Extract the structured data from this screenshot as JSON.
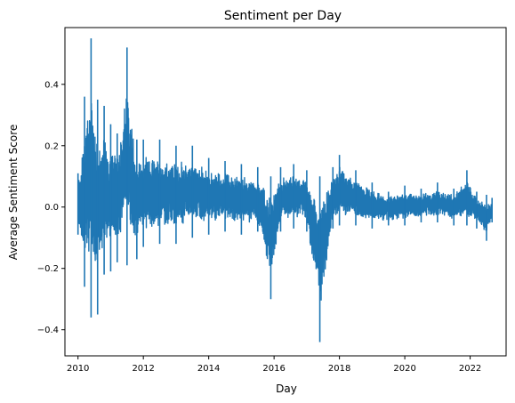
{
  "chart_data": {
    "type": "line",
    "title": "Sentiment per Day",
    "xlabel": "Day",
    "ylabel": "Average Sentiment Score",
    "xlim": [
      2009.6,
      2023.1
    ],
    "ylim": [
      -0.485,
      0.585
    ],
    "x_ticks": [
      2010,
      2012,
      2014,
      2016,
      2018,
      2020,
      2022
    ],
    "x_tick_labels": [
      "2010",
      "2012",
      "2014",
      "2016",
      "2018",
      "2020",
      "2022"
    ],
    "y_ticks": [
      -0.4,
      -0.2,
      0.0,
      0.2,
      0.4
    ],
    "y_tick_labels": [
      "−0.4",
      "−0.2",
      "0.0",
      "0.2",
      "0.4"
    ],
    "grid": false,
    "x_range_of_data": [
      2010.0,
      2022.67
    ],
    "series": [
      {
        "color": "#1f77b4",
        "envelope": [
          {
            "x": 2010.0,
            "min": -0.09,
            "max": 0.11
          },
          {
            "x": 2010.2,
            "min": -0.26,
            "max": 0.36
          },
          {
            "x": 2010.4,
            "min": -0.36,
            "max": 0.55
          },
          {
            "x": 2010.6,
            "min": -0.35,
            "max": 0.35
          },
          {
            "x": 2010.8,
            "min": -0.22,
            "max": 0.33
          },
          {
            "x": 2011.0,
            "min": -0.21,
            "max": 0.27
          },
          {
            "x": 2011.2,
            "min": -0.18,
            "max": 0.24
          },
          {
            "x": 2011.5,
            "min": -0.19,
            "max": 0.52
          },
          {
            "x": 2011.8,
            "min": -0.17,
            "max": 0.22
          },
          {
            "x": 2012.0,
            "min": -0.13,
            "max": 0.22
          },
          {
            "x": 2012.5,
            "min": -0.12,
            "max": 0.22
          },
          {
            "x": 2013.0,
            "min": -0.12,
            "max": 0.2
          },
          {
            "x": 2013.5,
            "min": -0.1,
            "max": 0.2
          },
          {
            "x": 2014.0,
            "min": -0.09,
            "max": 0.16
          },
          {
            "x": 2014.5,
            "min": -0.08,
            "max": 0.15
          },
          {
            "x": 2015.0,
            "min": -0.09,
            "max": 0.14
          },
          {
            "x": 2015.5,
            "min": -0.08,
            "max": 0.13
          },
          {
            "x": 2015.9,
            "min": -0.3,
            "max": 0.1
          },
          {
            "x": 2016.2,
            "min": -0.08,
            "max": 0.13
          },
          {
            "x": 2016.6,
            "min": -0.07,
            "max": 0.14
          },
          {
            "x": 2017.0,
            "min": -0.08,
            "max": 0.12
          },
          {
            "x": 2017.4,
            "min": -0.44,
            "max": 0.1
          },
          {
            "x": 2017.8,
            "min": -0.07,
            "max": 0.13
          },
          {
            "x": 2018.0,
            "min": -0.06,
            "max": 0.17
          },
          {
            "x": 2018.5,
            "min": -0.06,
            "max": 0.12
          },
          {
            "x": 2019.0,
            "min": -0.07,
            "max": 0.08
          },
          {
            "x": 2019.5,
            "min": -0.06,
            "max": 0.05
          },
          {
            "x": 2020.0,
            "min": -0.06,
            "max": 0.07
          },
          {
            "x": 2020.5,
            "min": -0.05,
            "max": 0.06
          },
          {
            "x": 2021.0,
            "min": -0.05,
            "max": 0.08
          },
          {
            "x": 2021.5,
            "min": -0.06,
            "max": 0.06
          },
          {
            "x": 2021.9,
            "min": -0.06,
            "max": 0.12
          },
          {
            "x": 2022.2,
            "min": -0.07,
            "max": 0.05
          },
          {
            "x": 2022.5,
            "min": -0.11,
            "max": 0.04
          },
          {
            "x": 2022.67,
            "min": -0.05,
            "max": 0.03
          }
        ]
      }
    ]
  }
}
